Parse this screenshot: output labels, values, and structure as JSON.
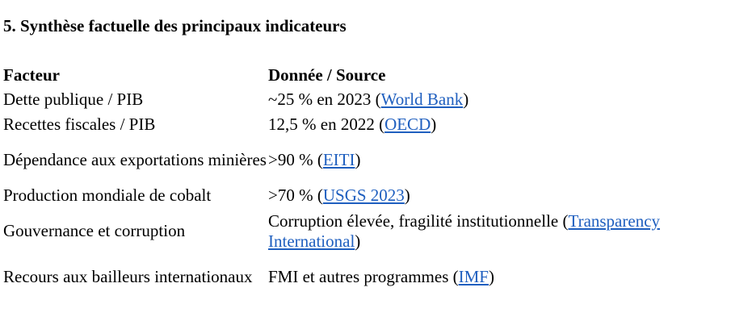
{
  "section": {
    "title": "5. Synthèse factuelle des principaux indicateurs"
  },
  "table": {
    "headers": {
      "factor": "Facteur",
      "data": "Donnée / Source"
    },
    "rows": [
      {
        "factor": "Dette publique / PIB",
        "data_before": "~25 % en 2023 (",
        "source": "World Bank",
        "data_after": ")"
      },
      {
        "factor": "Recettes fiscales / PIB",
        "data_before": "12,5 % en 2022 (",
        "source": "OECD",
        "data_after": ")"
      },
      {
        "factor": "Dépendance aux exportations minières",
        "data_before": ">90 % (",
        "source": "EITI",
        "data_after": ")"
      },
      {
        "factor": "Production mondiale de cobalt",
        "data_before": ">70 % (",
        "source": "USGS 2023",
        "data_after": ")"
      },
      {
        "factor": "Gouvernance et corruption",
        "data_before": "Corruption élevée, fragilité institutionnelle (",
        "source": "Transparency International",
        "data_after": ")"
      },
      {
        "factor": "Recours aux bailleurs internationaux",
        "data_before": "FMI et autres programmes (",
        "source": "IMF",
        "data_after": ")"
      }
    ]
  },
  "colors": {
    "link": "#1f5fbf",
    "text": "#000000",
    "background": "#ffffff"
  }
}
